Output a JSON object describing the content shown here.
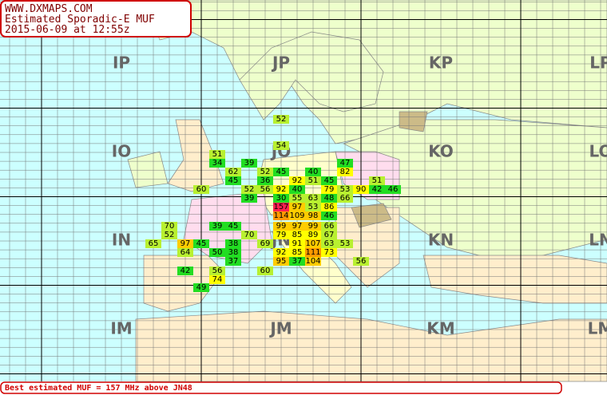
{
  "header": {
    "lines": [
      "WWW.DXMAPS.COM",
      "Estimated Sporadic-E MUF",
      "2015-06-09 at 12:55z"
    ]
  },
  "fields": [
    "IP",
    "JP",
    "KP",
    "LP",
    "IO",
    "JO",
    "KO",
    "LO",
    "IN",
    "JN",
    "KN",
    "LN",
    "IM",
    "JM",
    "KM",
    "LM"
  ],
  "cells": [
    {
      "value": 52,
      "color": "#b8f030"
    },
    {
      "value": 54,
      "color": "#b8f030"
    },
    {
      "value": 51,
      "color": "#b8f030"
    },
    {
      "value": 34,
      "color": "#22dd22"
    },
    {
      "value": 39,
      "color": "#22dd22"
    },
    {
      "value": 47,
      "color": "#22dd22"
    },
    {
      "value": 62,
      "color": "#b8f030"
    },
    {
      "value": 52,
      "color": "#b8f030"
    },
    {
      "value": 45,
      "color": "#22dd22"
    },
    {
      "value": 40,
      "color": "#22dd22"
    },
    {
      "value": 82,
      "color": "#ffff00"
    },
    {
      "value": 45,
      "color": "#22dd22"
    },
    {
      "value": 36,
      "color": "#22dd22"
    },
    {
      "value": 92,
      "color": "#ffff00"
    },
    {
      "value": 51,
      "color": "#b8f030"
    },
    {
      "value": 45,
      "color": "#22dd22"
    },
    {
      "value": 51,
      "color": "#b8f030"
    },
    {
      "value": 60,
      "color": "#b8f030"
    },
    {
      "value": 52,
      "color": "#b8f030"
    },
    {
      "value": 56,
      "color": "#b8f030"
    },
    {
      "value": 92,
      "color": "#ffff00"
    },
    {
      "value": 40,
      "color": "#22dd22"
    },
    {
      "value": 79,
      "color": "#ffff00"
    },
    {
      "value": 53,
      "color": "#b8f030"
    },
    {
      "value": 90,
      "color": "#ffff00"
    },
    {
      "value": 42,
      "color": "#22dd22"
    },
    {
      "value": 46,
      "color": "#22dd22"
    },
    {
      "value": 39,
      "color": "#22dd22"
    },
    {
      "value": 30,
      "color": "#22dd22"
    },
    {
      "value": 55,
      "color": "#b8f030"
    },
    {
      "value": 63,
      "color": "#b8f030"
    },
    {
      "value": 48,
      "color": "#22dd22"
    },
    {
      "value": 66,
      "color": "#b8f030"
    },
    {
      "value": 157,
      "color": "#ff2050"
    },
    {
      "value": 97,
      "color": "#ffcc00"
    },
    {
      "value": 53,
      "color": "#b8f030"
    },
    {
      "value": 86,
      "color": "#ffff00"
    },
    {
      "value": 114,
      "color": "#ff9900"
    },
    {
      "value": 109,
      "color": "#ffcc00"
    },
    {
      "value": 98,
      "color": "#ffcc00"
    },
    {
      "value": 46,
      "color": "#22dd22"
    },
    {
      "value": 70,
      "color": "#b8f030"
    },
    {
      "value": 39,
      "color": "#22dd22"
    },
    {
      "value": 45,
      "color": "#22dd22"
    },
    {
      "value": 99,
      "color": "#ffcc00"
    },
    {
      "value": 97,
      "color": "#ffcc00"
    },
    {
      "value": 99,
      "color": "#ffcc00"
    },
    {
      "value": 66,
      "color": "#b8f030"
    },
    {
      "value": 52,
      "color": "#b8f030"
    },
    {
      "value": 70,
      "color": "#b8f030"
    },
    {
      "value": 79,
      "color": "#ffff00"
    },
    {
      "value": 85,
      "color": "#ffff00"
    },
    {
      "value": 89,
      "color": "#ffff00"
    },
    {
      "value": 67,
      "color": "#b8f030"
    },
    {
      "value": 65,
      "color": "#b8f030"
    },
    {
      "value": 97,
      "color": "#ffcc00"
    },
    {
      "value": 45,
      "color": "#22dd22"
    },
    {
      "value": 38,
      "color": "#22dd22"
    },
    {
      "value": 69,
      "color": "#b8f030"
    },
    {
      "value": 91,
      "color": "#ffff00"
    },
    {
      "value": 107,
      "color": "#ffcc00"
    },
    {
      "value": 63,
      "color": "#b8f030"
    },
    {
      "value": 53,
      "color": "#b8f030"
    },
    {
      "value": 64,
      "color": "#b8f030"
    },
    {
      "value": 50,
      "color": "#22dd22"
    },
    {
      "value": 38,
      "color": "#22dd22"
    },
    {
      "value": 92,
      "color": "#ffff00"
    },
    {
      "value": 85,
      "color": "#ffff00"
    },
    {
      "value": 111,
      "color": "#ff9900"
    },
    {
      "value": 73,
      "color": "#ffff00"
    },
    {
      "value": 37,
      "color": "#22dd22"
    },
    {
      "value": 95,
      "color": "#ffcc00"
    },
    {
      "value": 37,
      "color": "#22dd22"
    },
    {
      "value": 104,
      "color": "#ffcc00"
    },
    {
      "value": 56,
      "color": "#b8f030"
    },
    {
      "value": 42,
      "color": "#22dd22"
    },
    {
      "value": 60,
      "color": "#b8f030"
    },
    {
      "value": 56,
      "color": "#b8f030"
    },
    {
      "value": 74,
      "color": "#ffff00"
    },
    {
      "value": 49,
      "color": "#22dd22"
    }
  ],
  "footer": {
    "text": "Best estimated MUF = 157 MHz above JN48"
  }
}
